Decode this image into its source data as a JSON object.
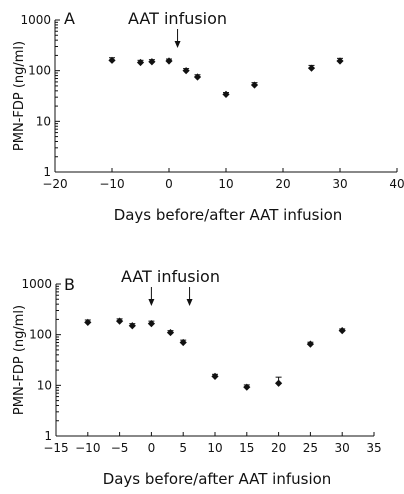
{
  "chart_data": [
    {
      "type": "scatter",
      "panel_label": "A",
      "annotations": [
        "AAT infusion"
      ],
      "xlabel": "Days before/after AAT infusion",
      "ylabel": "PMN-FDP (ng/ml)",
      "yscale": "log",
      "xlim": [
        -20,
        40
      ],
      "ylim": [
        1,
        1000
      ],
      "xticks": [
        -20,
        -10,
        0,
        10,
        20,
        30,
        40
      ],
      "yticks": [
        1,
        10,
        100,
        1000
      ],
      "x_tick_labels": [
        "−20",
        "−10",
        "0",
        "10",
        "20",
        "30",
        "40"
      ],
      "y_tick_labels": [
        "1",
        "10",
        "100",
        "1000"
      ],
      "arrows_at_x": [
        1.5
      ],
      "points": [
        {
          "x": -10,
          "y": 160,
          "err": 20
        },
        {
          "x": -5,
          "y": 145,
          "err": 15
        },
        {
          "x": -3,
          "y": 150,
          "err": 15
        },
        {
          "x": 0,
          "y": 155,
          "err": 15
        },
        {
          "x": 3,
          "y": 100,
          "err": 10
        },
        {
          "x": 5,
          "y": 75,
          "err": 8
        },
        {
          "x": 10,
          "y": 34,
          "err": 3
        },
        {
          "x": 15,
          "y": 52,
          "err": 6
        },
        {
          "x": 25,
          "y": 112,
          "err": 15
        },
        {
          "x": 30,
          "y": 155,
          "err": 20
        }
      ]
    },
    {
      "type": "scatter",
      "panel_label": "B",
      "annotations": [
        "AAT infusion"
      ],
      "xlabel": "Days before/after AAT infusion",
      "ylabel": "PMN-FDP (ng/ml)",
      "yscale": "log",
      "xlim": [
        -15,
        35
      ],
      "ylim": [
        1,
        1000
      ],
      "xticks": [
        -15,
        -10,
        -5,
        0,
        5,
        10,
        15,
        20,
        25,
        30,
        35
      ],
      "yticks": [
        1,
        10,
        100,
        1000
      ],
      "x_tick_labels": [
        "−15",
        "−10",
        "−5",
        "0",
        "5",
        "10",
        "15",
        "20",
        "25",
        "30",
        "35"
      ],
      "y_tick_labels": [
        "1",
        "10",
        "100",
        "1000"
      ],
      "arrows_at_x": [
        0,
        6
      ],
      "points": [
        {
          "x": -10,
          "y": 175,
          "err": 20
        },
        {
          "x": -5,
          "y": 185,
          "err": 20
        },
        {
          "x": -3,
          "y": 150,
          "err": 15
        },
        {
          "x": 0,
          "y": 165,
          "err": 20
        },
        {
          "x": 3,
          "y": 110,
          "err": 10
        },
        {
          "x": 5,
          "y": 70,
          "err": 8
        },
        {
          "x": 10,
          "y": 15,
          "err": 1.5
        },
        {
          "x": 15,
          "y": 9.2,
          "err": 1
        },
        {
          "x": 20,
          "y": 11,
          "err": 3.5
        },
        {
          "x": 25,
          "y": 65,
          "err": 6
        },
        {
          "x": 30,
          "y": 120,
          "err": 10
        }
      ]
    }
  ]
}
